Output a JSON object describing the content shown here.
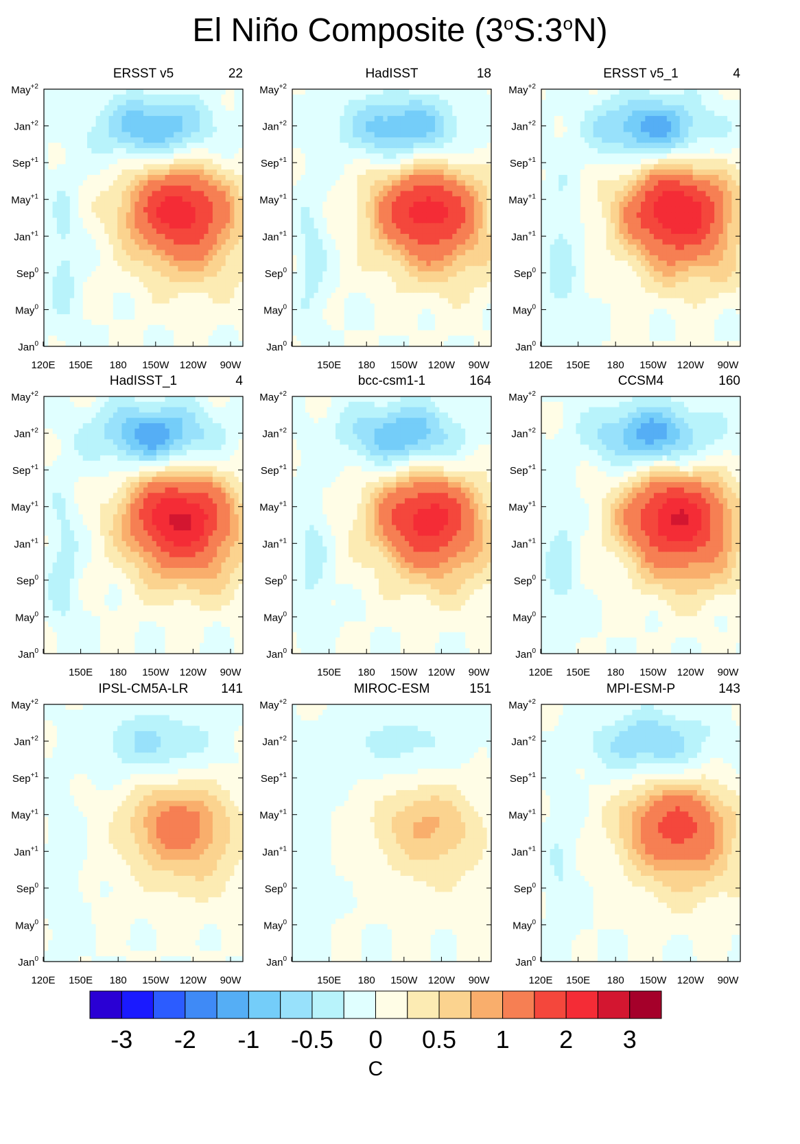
{
  "title": {
    "pre": "El Niño Composite (3",
    "sup1": "o",
    "mid": "S:3",
    "sup2": "o",
    "post": "N)"
  },
  "chart_data": {
    "type": "heatmap",
    "title": "El Niño Composite (3°S:3°N)",
    "units": "C",
    "x_ticks": [
      "120E",
      "150E",
      "180",
      "150W",
      "120W",
      "90W"
    ],
    "y_ticks": [
      {
        "m": "May",
        "e": "+2"
      },
      {
        "m": "Jan",
        "e": "+2"
      },
      {
        "m": "Sep",
        "e": "+1"
      },
      {
        "m": "May",
        "e": "+1"
      },
      {
        "m": "Jan",
        "e": "+1"
      },
      {
        "m": "Sep",
        "e": "0"
      },
      {
        "m": "May",
        "e": "0"
      },
      {
        "m": "Jan",
        "e": "0"
      }
    ],
    "colorbar": {
      "labels": [
        "-3",
        "-2",
        "-1",
        "-0.5",
        "0",
        "0.5",
        "1",
        "2",
        "3"
      ],
      "colors": [
        "#2a00d4",
        "#1a1aff",
        "#2c5cff",
        "#3f8af6",
        "#55aef5",
        "#74cdf9",
        "#98e1fb",
        "#b8f3fb",
        "#e0ffff",
        "#fffde6",
        "#fcebb3",
        "#fbd38f",
        "#f9ae6c",
        "#f67f53",
        "#f4473c",
        "#f42c36",
        "#d31630",
        "#a5002a"
      ]
    },
    "panels": [
      {
        "name": "ERSST v5",
        "count": "22",
        "show_x": [
          true,
          true,
          true,
          true,
          true,
          true
        ],
        "amp": 1.0
      },
      {
        "name": "HadISST",
        "count": "18",
        "show_x": [
          false,
          true,
          true,
          true,
          true,
          true
        ],
        "amp": 1.0
      },
      {
        "name": "ERSST v5_1",
        "count": "4",
        "show_x": [
          true,
          true,
          true,
          true,
          true,
          true
        ],
        "amp": 1.1
      },
      {
        "name": "HadISST_1",
        "count": "4",
        "show_x": [
          false,
          true,
          true,
          true,
          true,
          true
        ],
        "amp": 1.15
      },
      {
        "name": "bcc-csm1-1",
        "count": "164",
        "show_x": [
          false,
          true,
          true,
          true,
          true,
          true
        ],
        "amp": 1.0
      },
      {
        "name": "CCSM4",
        "count": "160",
        "show_x": [
          true,
          true,
          true,
          true,
          true,
          true
        ],
        "amp": 1.1
      },
      {
        "name": "IPSL-CM5A-LR",
        "count": "141",
        "show_x": [
          true,
          true,
          true,
          true,
          true,
          true
        ],
        "amp": 0.55
      },
      {
        "name": "MIROC-ESM",
        "count": "151",
        "show_x": [
          false,
          true,
          true,
          true,
          true,
          true
        ],
        "amp": 0.35
      },
      {
        "name": "MPI-ESM-P",
        "count": "143",
        "show_x": [
          true,
          true,
          true,
          true,
          true,
          true
        ],
        "amp": 0.75
      }
    ]
  }
}
